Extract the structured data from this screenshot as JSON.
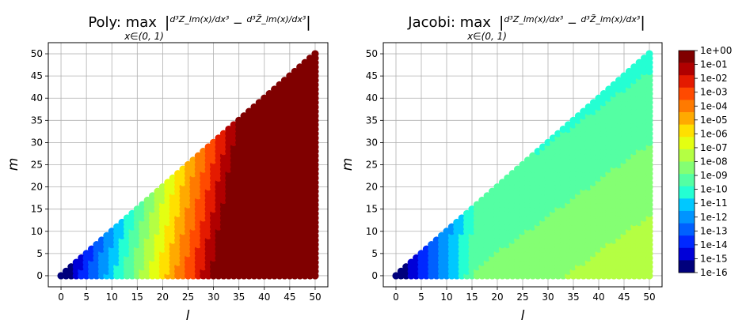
{
  "colorbar": {
    "tick_labels": [
      "1e+00",
      "1e-01",
      "1e-02",
      "1e-03",
      "1e-04",
      "1e-05",
      "1e-06",
      "1e-07",
      "1e-08",
      "1e-09",
      "1e-10",
      "1e-11",
      "1e-12",
      "1e-13",
      "1e-14",
      "1e-15",
      "1e-16"
    ],
    "colors": [
      "#800000",
      "#b00000",
      "#e41a00",
      "#ff4a00",
      "#ff7a00",
      "#ffaa00",
      "#ffe000",
      "#e4ff12",
      "#b4ff43",
      "#84ff73",
      "#54ffa3",
      "#24ffd3",
      "#00c8ff",
      "#0094ff",
      "#0060ff",
      "#0028ff",
      "#0000d8",
      "#00007c"
    ]
  },
  "chart_data": [
    {
      "type": "scatter",
      "title_prefix": "Poly: max",
      "title_sub": "x∈(0, 1)",
      "title_expr_a": "d³Z_lm(x)/dx³",
      "title_expr_b": "d³Z̃_lm(x)/dx³",
      "xlabel": "l",
      "ylabel": "m",
      "xlim": [
        -2.5,
        52.5
      ],
      "ylim": [
        -2.5,
        52.5
      ],
      "xticks": [
        0,
        5,
        10,
        15,
        20,
        25,
        30,
        35,
        40,
        45,
        50
      ],
      "yticks": [
        0,
        5,
        10,
        15,
        20,
        25,
        30,
        35,
        40,
        45,
        50
      ],
      "grid": true,
      "domain": "l = 0..50, m = 0..l",
      "value_unit": "log10 max error",
      "error_model": "log10 error ≈ -16.2 + 0.52*l - 0.08*m",
      "error_model_coeffs": [
        -16.2,
        0.52,
        -0.08
      ]
    },
    {
      "type": "scatter",
      "title_prefix": "Jacobi: max",
      "title_sub": "x∈(0, 1)",
      "title_expr_a": "d³Z_lm(x)/dx³",
      "title_expr_b": "d³Z̃_lm(x)/dx³",
      "xlabel": "l",
      "ylabel": "m",
      "xlim": [
        -2.5,
        52.5
      ],
      "ylim": [
        -2.5,
        52.5
      ],
      "xticks": [
        0,
        5,
        10,
        15,
        20,
        25,
        30,
        35,
        40,
        45,
        50
      ],
      "yticks": [
        0,
        5,
        10,
        15,
        20,
        25,
        30,
        35,
        40,
        45,
        50
      ],
      "grid": true,
      "domain": "l = 0..50, m = 0..l",
      "value_unit": "log10 max error",
      "error_model": "log10 error ≈ -9.5 + 0.045*l - 0.055*m, saturating toward -16 at small l",
      "error_model_coeffs": [
        -9.5,
        0.045,
        -0.055
      ]
    }
  ]
}
